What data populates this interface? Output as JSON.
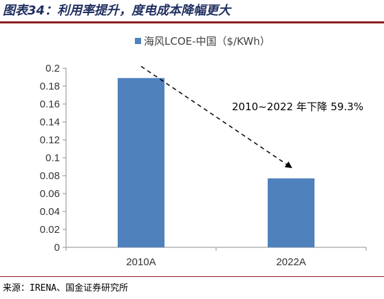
{
  "figure": {
    "title": "图表34：利用率提升，度电成本降幅更大",
    "source": "来源：IRENA、国金证券研究所",
    "accent_color": "#8c1b1b",
    "title_color": "#1f2f5f"
  },
  "chart_data": {
    "type": "bar",
    "categories": [
      "2010A",
      "2022A"
    ],
    "series": [
      {
        "name": "海风LCOE-中国（$/KWh）",
        "values": [
          0.189,
          0.077
        ],
        "color": "#4f81bd"
      }
    ],
    "ylim": [
      0,
      0.2
    ],
    "yticks": [
      "0",
      "0.02",
      "0.04",
      "0.06",
      "0.08",
      "0.1",
      "0.12",
      "0.14",
      "0.16",
      "0.18",
      "0.2"
    ],
    "grid": false,
    "legend": "top-center",
    "annotation": {
      "text": "2010~2022 年下降 59.3%",
      "arrow": "dashed, from 2010A bar top toward 2022A bar top"
    }
  }
}
